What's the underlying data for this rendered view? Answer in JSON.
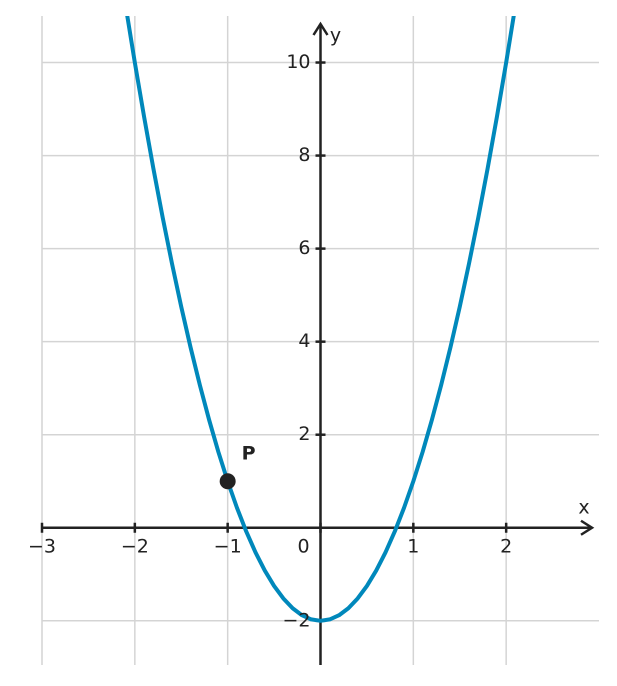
{
  "chart_data": {
    "type": "line",
    "x": [
      -2.1,
      -2.0,
      -1.9,
      -1.8,
      -1.7,
      -1.6,
      -1.5,
      -1.4,
      -1.3,
      -1.2,
      -1.1,
      -1.0,
      -0.9,
      -0.8,
      -0.7,
      -0.6,
      -0.5,
      -0.4,
      -0.3,
      -0.2,
      -0.1,
      0,
      0.1,
      0.2,
      0.3,
      0.4,
      0.5,
      0.6,
      0.7,
      0.8,
      0.9,
      1.0,
      1.1,
      1.2,
      1.3,
      1.4,
      1.5,
      1.6,
      1.7,
      1.8,
      1.9,
      2.0,
      2.1
    ],
    "values": [
      11.23,
      10,
      8.83,
      7.72,
      6.67,
      5.68,
      4.75,
      3.88,
      3.07,
      2.32,
      1.63,
      1,
      0.43,
      -0.08,
      -0.53,
      -0.92,
      -1.25,
      -1.52,
      -1.73,
      -1.88,
      -1.97,
      -2,
      -1.97,
      -1.88,
      -1.73,
      -1.52,
      -1.25,
      -0.92,
      -0.53,
      -0.08,
      0.43,
      1,
      1.63,
      2.32,
      3.07,
      3.88,
      4.75,
      5.68,
      6.67,
      7.72,
      8.83,
      10,
      11.23
    ],
    "color": "#0088bb",
    "xlabel": "x",
    "ylabel": "y",
    "xlim": [
      -3,
      3
    ],
    "ylim": [
      -2.95,
      11
    ],
    "xticks": [
      {
        "value": -3,
        "label": "−3"
      },
      {
        "value": -2,
        "label": "−2"
      },
      {
        "value": -1,
        "label": "−1"
      },
      0,
      1,
      2
    ],
    "yticks": [
      {
        "value": -2,
        "label": "−2"
      },
      2,
      4,
      6,
      8,
      10
    ],
    "grid": true,
    "points": [
      {
        "label": "P",
        "x": -1,
        "y": 1,
        "color": "#222222"
      }
    ]
  }
}
